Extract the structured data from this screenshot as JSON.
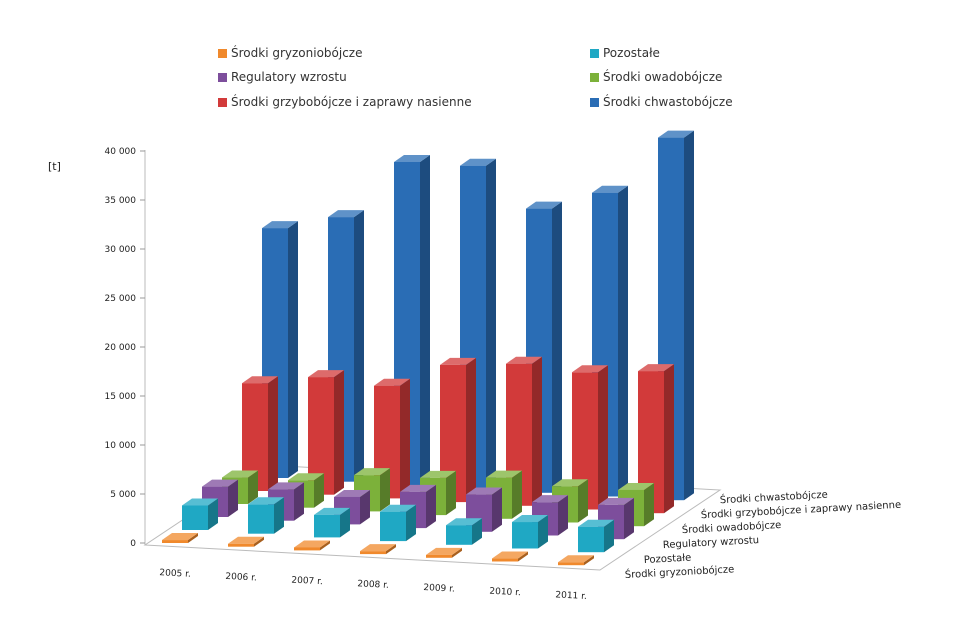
{
  "chart_data": {
    "type": "bar",
    "subtype": "3d-column",
    "ylabel": "[t]",
    "ylim": [
      0,
      40000
    ],
    "yticks": [
      "0",
      "5 000",
      "10 000",
      "15 000",
      "20 000",
      "25 000",
      "30 000",
      "35 000",
      "40 000"
    ],
    "categories": [
      "2005 r.",
      "2006 r.",
      "2007 r.",
      "2008 r.",
      "2009 r.",
      "2010 r.",
      "2011 r."
    ],
    "legend_placement": "top",
    "series": [
      {
        "name": "Środki gryzoniobójcze",
        "color": "#f0892c",
        "values": [
          300,
          300,
          300,
          300,
          300,
          300,
          300
        ]
      },
      {
        "name": "Pozostałe",
        "color": "#1fa8c4",
        "values": [
          2500,
          3000,
          2300,
          3000,
          2000,
          2700,
          2600
        ]
      },
      {
        "name": "Regulatory wzrostu",
        "color": "#7d4e9c",
        "values": [
          3100,
          3200,
          2800,
          3700,
          3800,
          3400,
          3500
        ]
      },
      {
        "name": "Środki owadobójcze",
        "color": "#7cb13a",
        "values": [
          2700,
          2800,
          3700,
          3800,
          4200,
          3700,
          3700
        ]
      },
      {
        "name": "Środki grzybobójcze i zaprawy nasienne",
        "color": "#d23a3a",
        "values": [
          11000,
          12000,
          11500,
          14000,
          14500,
          14000,
          14500
        ]
      },
      {
        "name": "Środki chwastobójcze",
        "color": "#2a6db5",
        "values": [
          25500,
          27000,
          33000,
          33000,
          29000,
          31000,
          37000
        ]
      }
    ],
    "legend_order": [
      0,
      1,
      2,
      3,
      4,
      5
    ]
  }
}
